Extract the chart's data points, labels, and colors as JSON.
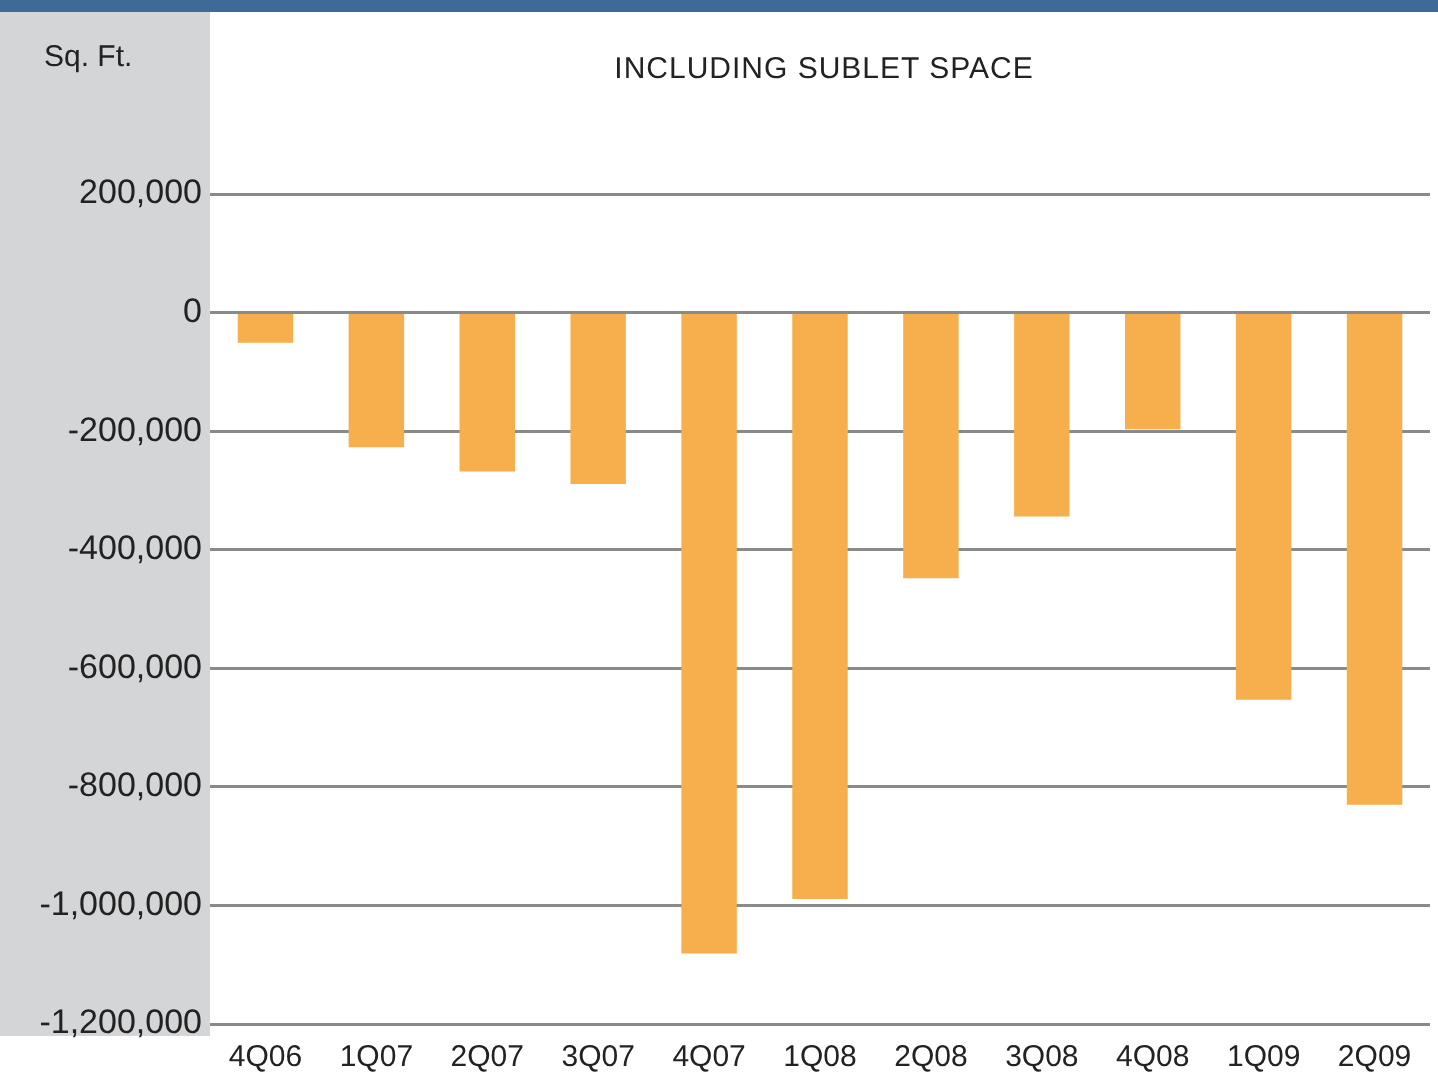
{
  "chart_data": {
    "type": "bar",
    "title": "INCLUDING SUBLET SPACE",
    "ylabel": "Sq. Ft.",
    "categories": [
      "4Q06",
      "1Q07",
      "2Q07",
      "3Q07",
      "4Q07",
      "1Q08",
      "2Q08",
      "3Q08",
      "4Q08",
      "1Q09",
      "2Q09"
    ],
    "values": [
      -51000,
      -227000,
      -268000,
      -289000,
      -1081000,
      -989000,
      -448000,
      -344000,
      -197000,
      -653000,
      -830000
    ],
    "color": "#f7ae4c",
    "ylim": [
      -1200000,
      200000
    ],
    "yticks": [
      {
        "value": -1200000,
        "label": "-1,200,000"
      },
      {
        "value": -1000000,
        "label": "-1,000,000"
      },
      {
        "value": -800000,
        "label": "-800,000"
      },
      {
        "value": -600000,
        "label": "-600,000"
      },
      {
        "value": -400000,
        "label": "-400,000"
      },
      {
        "value": -200000,
        "label": "-200,000"
      },
      0,
      {
        "value": 200000,
        "label": "200,000"
      }
    ],
    "grid": "y",
    "legend": false
  }
}
